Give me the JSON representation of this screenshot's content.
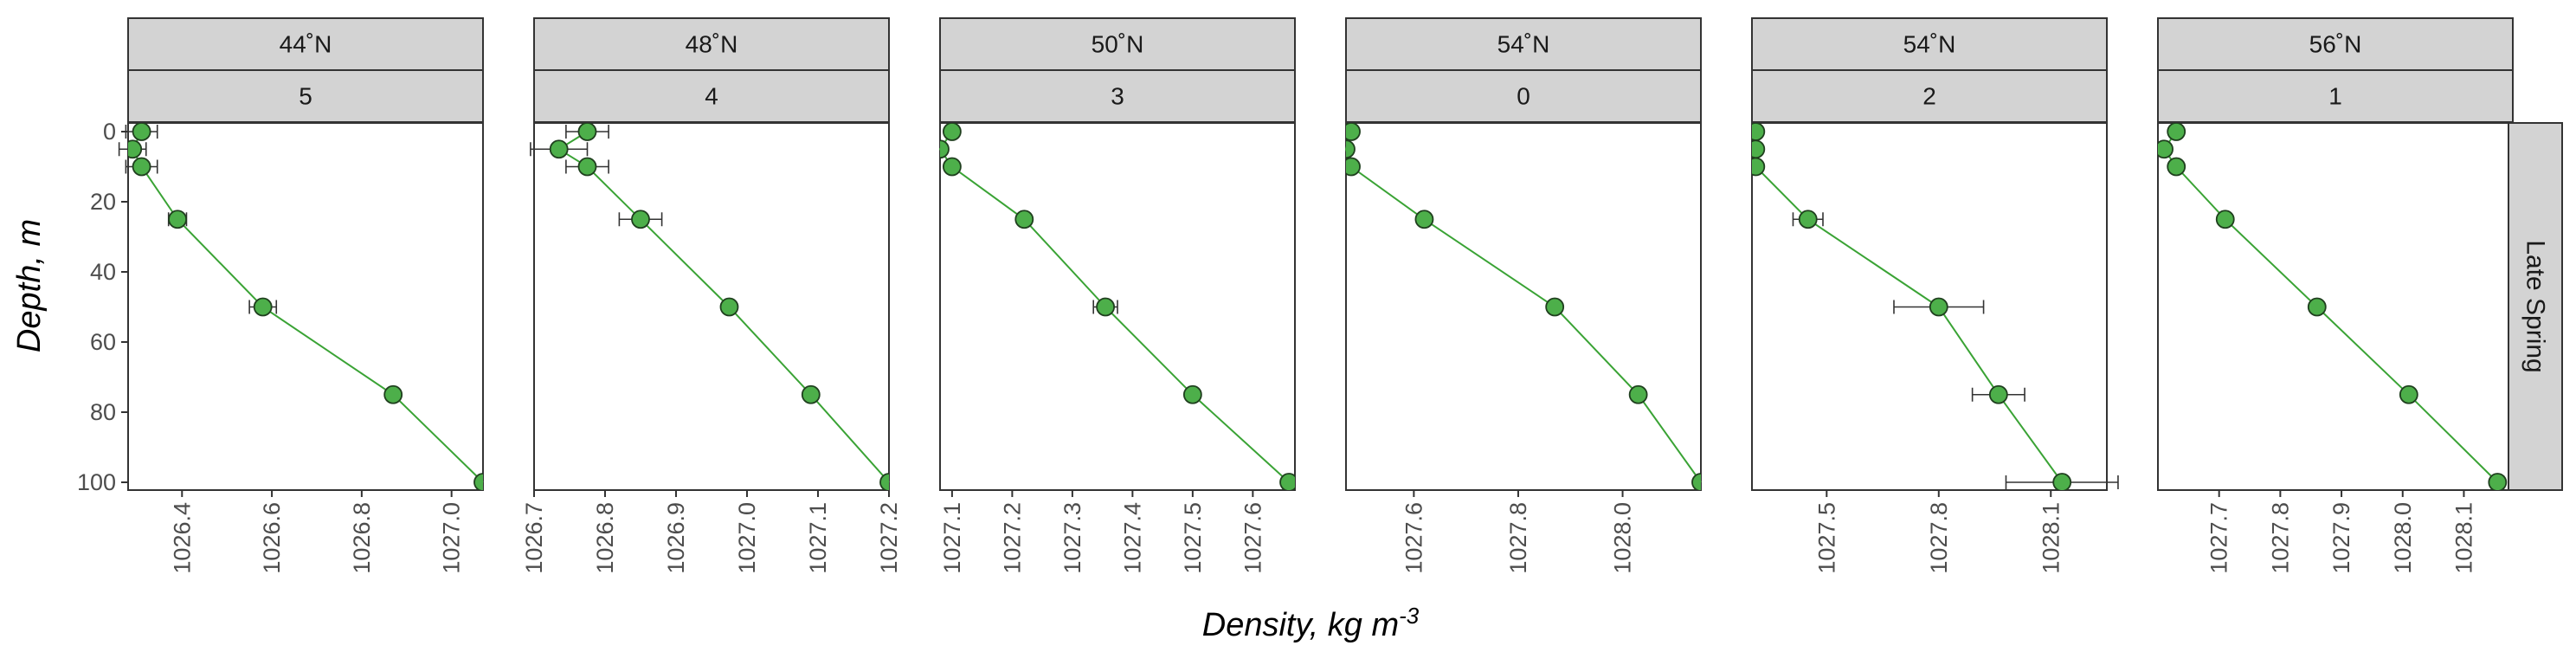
{
  "chart_data": {
    "type": "scatter",
    "xlabel": "Density, kg m",
    "xlabel_superscript": "-3",
    "ylabel": "Depth, m",
    "row_strip": "Late Spring",
    "y_reversed": true,
    "ylim": [
      0,
      100
    ],
    "y_ticks": [
      "0",
      "20",
      "40",
      "60",
      "80",
      "100"
    ],
    "y_tick_values": [
      0,
      20,
      40,
      60,
      80,
      100
    ],
    "grid": false,
    "colors": {
      "point_fill": "#4daf4a",
      "point_edge": "#1f3f1e",
      "line": "#3aa335",
      "strip_fill": "#d3d3d3",
      "errorbar": "#333333"
    },
    "panels": [
      {
        "lat": "44˚N",
        "station": "5",
        "xlim": [
          1026.28,
          1027.07
        ],
        "x_ticks": [
          "1026.4",
          "1026.6",
          "1026.8",
          "1027.0"
        ],
        "x_tick_values": [
          1026.4,
          1026.6,
          1026.8,
          1027.0
        ],
        "points": [
          {
            "x": 1026.31,
            "y": 0,
            "err": 0.035
          },
          {
            "x": 1026.29,
            "y": 5,
            "err": 0.03
          },
          {
            "x": 1026.31,
            "y": 10,
            "err": 0.035
          },
          {
            "x": 1026.39,
            "y": 25,
            "err": 0.02
          },
          {
            "x": 1026.58,
            "y": 50,
            "err": 0.03
          },
          {
            "x": 1026.87,
            "y": 75,
            "err": 0
          },
          {
            "x": 1027.07,
            "y": 100,
            "err": 0
          }
        ]
      },
      {
        "lat": "48˚N",
        "station": "4",
        "xlim": [
          1026.7,
          1027.2
        ],
        "x_ticks": [
          "1026.7",
          "1026.8",
          "1026.9",
          "1027.0",
          "1027.1",
          "1027.2"
        ],
        "x_tick_values": [
          1026.7,
          1026.8,
          1026.9,
          1027.0,
          1027.1,
          1027.2
        ],
        "points": [
          {
            "x": 1026.775,
            "y": 0,
            "err": 0.03
          },
          {
            "x": 1026.735,
            "y": 5,
            "err": 0.04
          },
          {
            "x": 1026.775,
            "y": 10,
            "err": 0.03
          },
          {
            "x": 1026.85,
            "y": 25,
            "err": 0.03
          },
          {
            "x": 1026.975,
            "y": 50,
            "err": 0
          },
          {
            "x": 1027.09,
            "y": 75,
            "err": 0
          },
          {
            "x": 1027.2,
            "y": 100,
            "err": 0
          }
        ]
      },
      {
        "lat": "50˚N",
        "station": "3",
        "xlim": [
          1027.08,
          1027.67
        ],
        "x_ticks": [
          "1027.1",
          "1027.2",
          "1027.3",
          "1027.4",
          "1027.5",
          "1027.6"
        ],
        "x_tick_values": [
          1027.1,
          1027.2,
          1027.3,
          1027.4,
          1027.5,
          1027.6
        ],
        "points": [
          {
            "x": 1027.1,
            "y": 0,
            "err": 0
          },
          {
            "x": 1027.08,
            "y": 5,
            "err": 0
          },
          {
            "x": 1027.1,
            "y": 10,
            "err": 0
          },
          {
            "x": 1027.22,
            "y": 25,
            "err": 0
          },
          {
            "x": 1027.355,
            "y": 50,
            "err": 0.02
          },
          {
            "x": 1027.5,
            "y": 75,
            "err": 0
          },
          {
            "x": 1027.66,
            "y": 100,
            "err": 0.01
          }
        ]
      },
      {
        "lat": "54˚N",
        "station": "0",
        "xlim": [
          1027.47,
          1028.15
        ],
        "x_ticks": [
          "1027.6",
          "1027.8",
          "1028.0"
        ],
        "x_tick_values": [
          1027.6,
          1027.8,
          1028.0
        ],
        "points": [
          {
            "x": 1027.48,
            "y": 0,
            "err": 0
          },
          {
            "x": 1027.47,
            "y": 5,
            "err": 0
          },
          {
            "x": 1027.48,
            "y": 10,
            "err": 0
          },
          {
            "x": 1027.62,
            "y": 25,
            "err": 0
          },
          {
            "x": 1027.87,
            "y": 50,
            "err": 0
          },
          {
            "x": 1028.03,
            "y": 75,
            "err": 0
          },
          {
            "x": 1028.15,
            "y": 100,
            "err": 0
          }
        ]
      },
      {
        "lat": "54˚N",
        "station": "2",
        "xlim": [
          1027.3,
          1028.25
        ],
        "x_ticks": [
          "1027.5",
          "1027.8",
          "1028.1"
        ],
        "x_tick_values": [
          1027.5,
          1027.8,
          1028.1
        ],
        "points": [
          {
            "x": 1027.31,
            "y": 0,
            "err": 0
          },
          {
            "x": 1027.31,
            "y": 5,
            "err": 0
          },
          {
            "x": 1027.31,
            "y": 10,
            "err": 0
          },
          {
            "x": 1027.45,
            "y": 25,
            "err": 0.04
          },
          {
            "x": 1027.8,
            "y": 50,
            "err": 0.12
          },
          {
            "x": 1027.96,
            "y": 75,
            "err": 0.07
          },
          {
            "x": 1028.13,
            "y": 100,
            "err": 0.15
          }
        ]
      },
      {
        "lat": "56˚N",
        "station": "1",
        "xlim": [
          1027.6,
          1028.18
        ],
        "x_ticks": [
          "1027.7",
          "1027.8",
          "1027.9",
          "1028.0",
          "1028.1"
        ],
        "x_tick_values": [
          1027.7,
          1027.8,
          1027.9,
          1028.0,
          1028.1
        ],
        "points": [
          {
            "x": 1027.63,
            "y": 0,
            "err": 0
          },
          {
            "x": 1027.61,
            "y": 5,
            "err": 0
          },
          {
            "x": 1027.63,
            "y": 10,
            "err": 0
          },
          {
            "x": 1027.71,
            "y": 25,
            "err": 0
          },
          {
            "x": 1027.86,
            "y": 50,
            "err": 0.007
          },
          {
            "x": 1028.01,
            "y": 75,
            "err": 0.007
          },
          {
            "x": 1028.155,
            "y": 100,
            "err": 0.01
          }
        ]
      }
    ]
  }
}
